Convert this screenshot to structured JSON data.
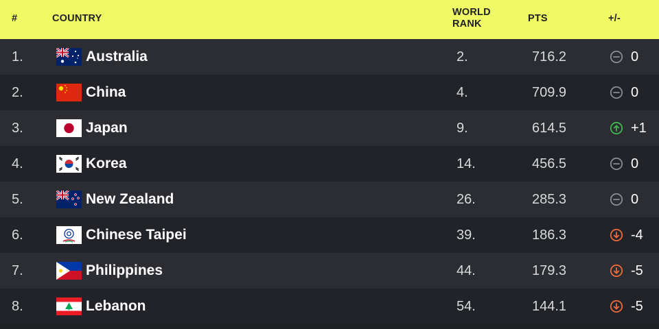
{
  "header": {
    "rank": "#",
    "country": "COUNTRY",
    "world_rank_line1": "WORLD",
    "world_rank_line2": "RANK",
    "pts": "PTS",
    "delta": "+/-"
  },
  "colors": {
    "header_bg": "#f0fa64",
    "row_odd": "#2b2d32",
    "row_even": "#222328",
    "neutral": "#8a8c91",
    "up": "#3fb950",
    "down": "#ef6a3a"
  },
  "rows": [
    {
      "rank": "1.",
      "country": "Australia",
      "flag": "australia-flag-icon",
      "world_rank": "2.",
      "pts": "716.2",
      "trend": "neutral",
      "delta": "0"
    },
    {
      "rank": "2.",
      "country": "China",
      "flag": "china-flag-icon",
      "world_rank": "4.",
      "pts": "709.9",
      "trend": "neutral",
      "delta": "0"
    },
    {
      "rank": "3.",
      "country": "Japan",
      "flag": "japan-flag-icon",
      "world_rank": "9.",
      "pts": "614.5",
      "trend": "up",
      "delta": "+1"
    },
    {
      "rank": "4.",
      "country": "Korea",
      "flag": "korea-flag-icon",
      "world_rank": "14.",
      "pts": "456.5",
      "trend": "neutral",
      "delta": "0"
    },
    {
      "rank": "5.",
      "country": "New Zealand",
      "flag": "new-zealand-flag-icon",
      "world_rank": "26.",
      "pts": "285.3",
      "trend": "neutral",
      "delta": "0"
    },
    {
      "rank": "6.",
      "country": "Chinese Taipei",
      "flag": "chinese-taipei-flag-icon",
      "world_rank": "39.",
      "pts": "186.3",
      "trend": "down",
      "delta": "-4"
    },
    {
      "rank": "7.",
      "country": "Philippines",
      "flag": "philippines-flag-icon",
      "world_rank": "44.",
      "pts": "179.3",
      "trend": "down",
      "delta": "-5"
    },
    {
      "rank": "8.",
      "country": "Lebanon",
      "flag": "lebanon-flag-icon",
      "world_rank": "54.",
      "pts": "144.1",
      "trend": "down",
      "delta": "-5"
    }
  ]
}
